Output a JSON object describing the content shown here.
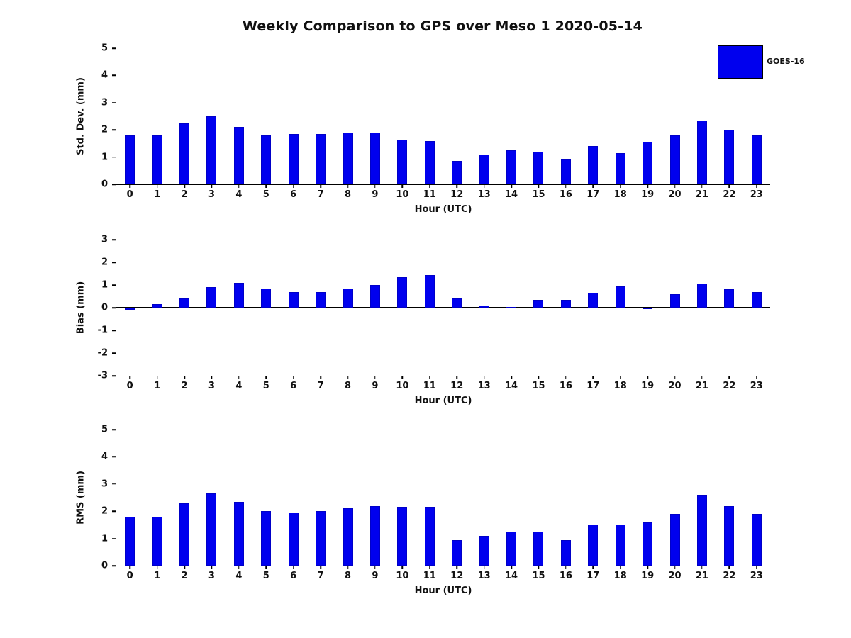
{
  "title": "Weekly Comparison to GPS over Meso 1 2020-05-14",
  "legend": {
    "label": "GOES-16",
    "color": "#0000ee"
  },
  "chart_data": [
    {
      "type": "bar",
      "title": "",
      "ylabel": "Std. Dev. (mm)",
      "xlabel": "Hour (UTC)",
      "ylim": [
        0,
        5
      ],
      "yticks": [
        0,
        1,
        2,
        3,
        4,
        5
      ],
      "grid": false,
      "legend_position": "top-right",
      "series_name": "GOES-16",
      "color": "#0000ee",
      "categories": [
        "0",
        "1",
        "2",
        "3",
        "4",
        "5",
        "6",
        "7",
        "8",
        "9",
        "10",
        "11",
        "12",
        "13",
        "14",
        "15",
        "16",
        "17",
        "18",
        "19",
        "20",
        "21",
        "22",
        "23"
      ],
      "values": [
        1.8,
        1.8,
        2.25,
        2.5,
        2.1,
        1.8,
        1.85,
        1.85,
        1.9,
        1.9,
        1.65,
        1.6,
        0.85,
        1.1,
        1.25,
        1.2,
        0.9,
        1.4,
        1.15,
        1.55,
        1.8,
        2.35,
        2.0,
        1.8
      ]
    },
    {
      "type": "bar",
      "title": "",
      "ylabel": "Bias (mm)",
      "xlabel": "Hour (UTC)",
      "ylim": [
        -3,
        3
      ],
      "yticks": [
        -3,
        -2,
        -1,
        0,
        1,
        2,
        3
      ],
      "grid": false,
      "legend_position": "none",
      "series_name": "GOES-16",
      "color": "#0000ee",
      "categories": [
        "0",
        "1",
        "2",
        "3",
        "4",
        "5",
        "6",
        "7",
        "8",
        "9",
        "10",
        "11",
        "12",
        "13",
        "14",
        "15",
        "16",
        "17",
        "18",
        "19",
        "20",
        "21",
        "22",
        "23"
      ],
      "values": [
        -0.1,
        0.15,
        0.4,
        0.9,
        1.1,
        0.85,
        0.7,
        0.7,
        0.85,
        1.0,
        1.35,
        1.45,
        0.4,
        0.1,
        0.02,
        0.35,
        0.35,
        0.65,
        0.95,
        -0.05,
        0.6,
        1.05,
        0.8,
        0.7
      ]
    },
    {
      "type": "bar",
      "title": "",
      "ylabel": "RMS (mm)",
      "xlabel": "Hour (UTC)",
      "ylim": [
        0,
        5
      ],
      "yticks": [
        0,
        1,
        2,
        3,
        4,
        5
      ],
      "grid": false,
      "legend_position": "none",
      "series_name": "GOES-16",
      "color": "#0000ee",
      "categories": [
        "0",
        "1",
        "2",
        "3",
        "4",
        "5",
        "6",
        "7",
        "8",
        "9",
        "10",
        "11",
        "12",
        "13",
        "14",
        "15",
        "16",
        "17",
        "18",
        "19",
        "20",
        "21",
        "22",
        "23"
      ],
      "values": [
        1.8,
        1.8,
        2.3,
        2.65,
        2.35,
        2.0,
        1.95,
        2.0,
        2.1,
        2.2,
        2.15,
        2.15,
        0.95,
        1.1,
        1.25,
        1.25,
        0.95,
        1.5,
        1.5,
        1.6,
        1.9,
        2.6,
        2.2,
        1.9
      ]
    }
  ]
}
